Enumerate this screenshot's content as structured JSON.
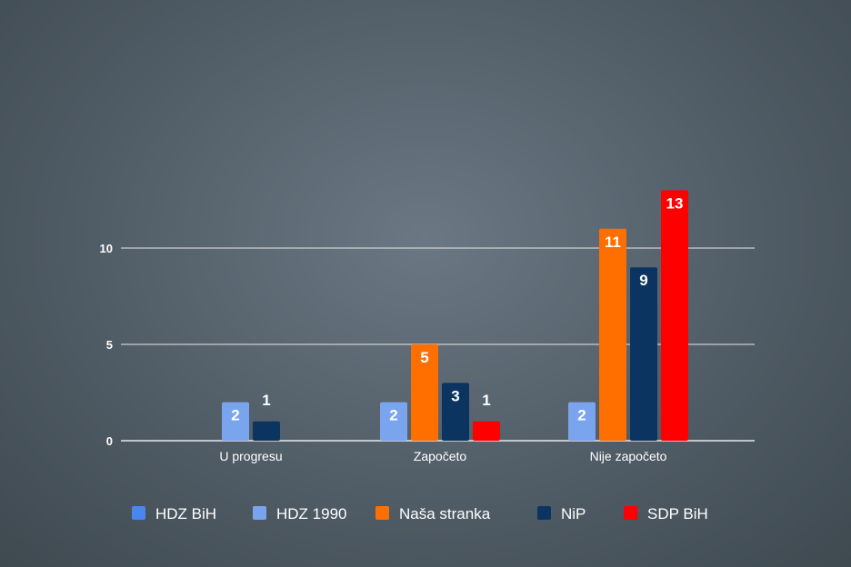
{
  "chart_data": {
    "type": "bar",
    "categories": [
      "U progresu",
      "Započeto",
      "Nije započeto"
    ],
    "series": [
      {
        "name": "HDZ BiH",
        "color": "#4a86f0",
        "values": [
          0,
          0,
          0
        ]
      },
      {
        "name": "HDZ 1990",
        "color": "#7aa5ee",
        "values": [
          2,
          2,
          2
        ]
      },
      {
        "name": "Naša stranka",
        "color": "#ff6f00",
        "values": [
          0,
          5,
          11
        ]
      },
      {
        "name": "NiP",
        "color": "#0b3560",
        "values": [
          1,
          3,
          9
        ]
      },
      {
        "name": "SDP BiH",
        "color": "#ff0000",
        "values": [
          0,
          1,
          13
        ]
      }
    ],
    "yticks": [
      0,
      5,
      10
    ],
    "ylim": [
      0,
      13
    ],
    "grid": true,
    "legend_position": "bottom"
  }
}
